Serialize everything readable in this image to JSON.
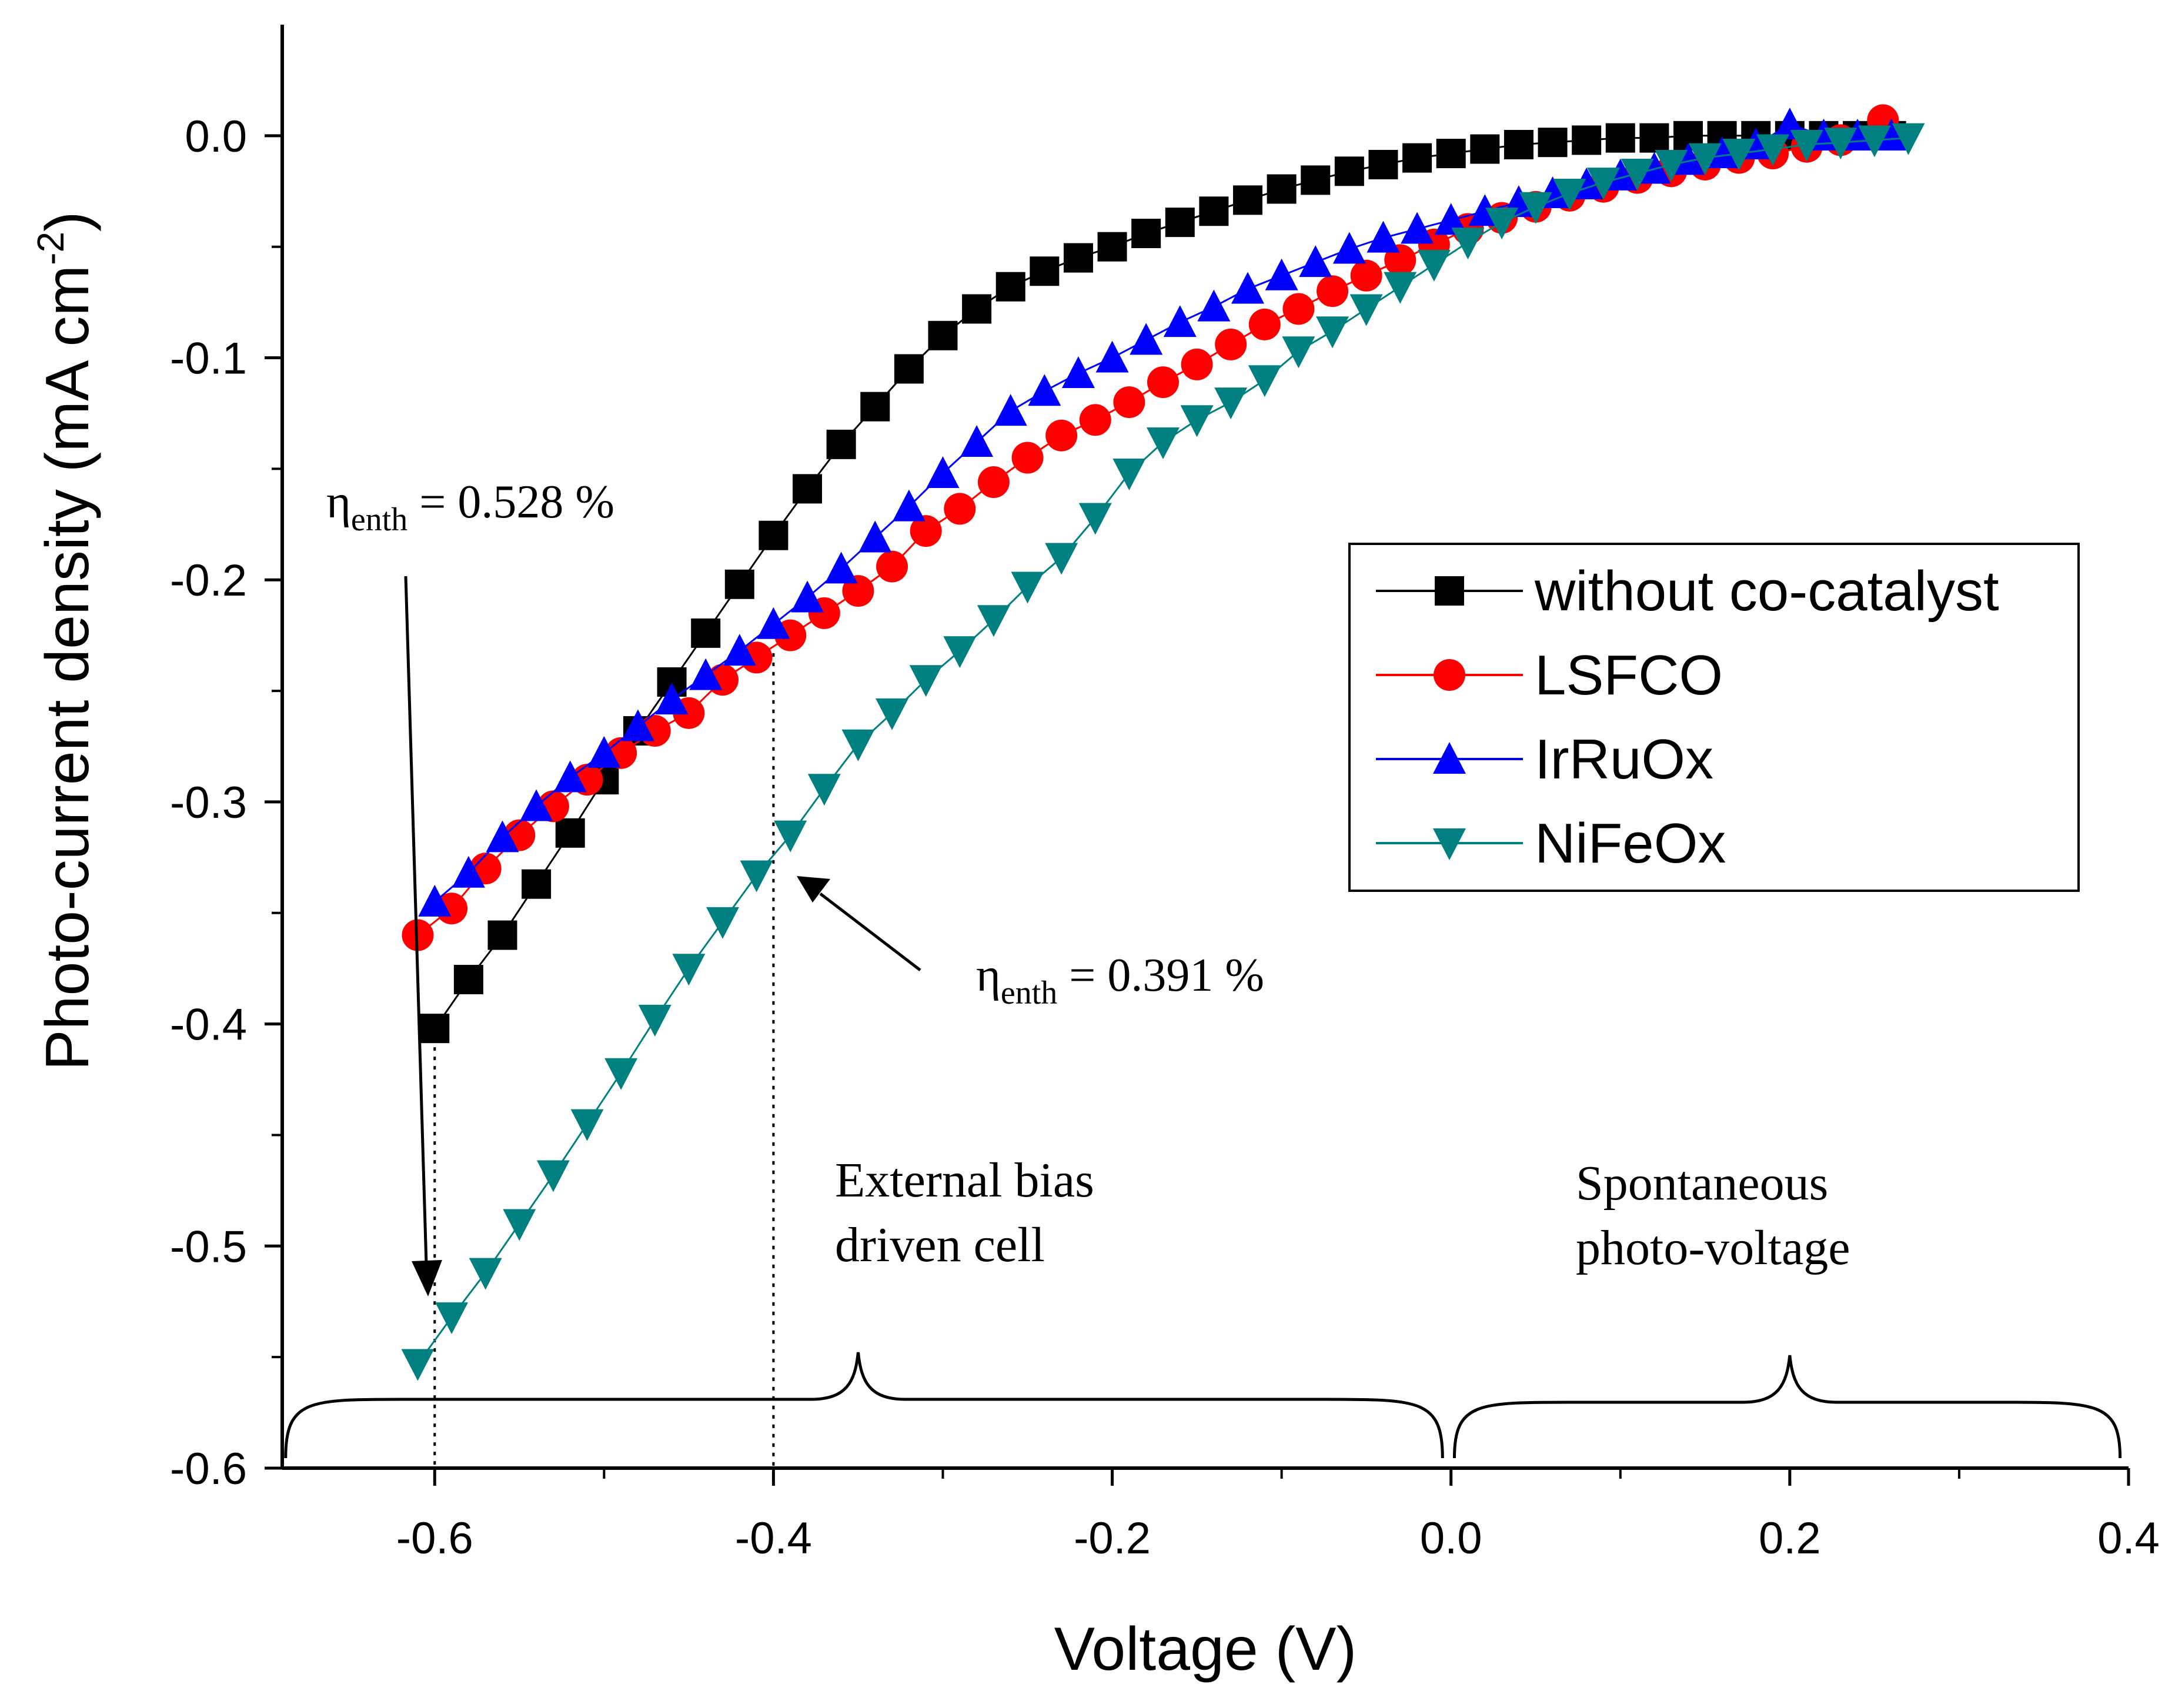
{
  "chart_data": {
    "type": "line",
    "xlabel": "Voltage (V)",
    "ylabel": {
      "main": "Photo-current density (mA cm",
      "sup": "-2",
      "end": ")"
    },
    "xlim": [
      -0.69,
      0.4
    ],
    "ylim": [
      -0.6,
      0.05
    ],
    "x_ticks": [
      -0.6,
      -0.4,
      -0.2,
      0.0,
      0.2,
      0.4
    ],
    "x_tick_labels": [
      "-0.6",
      "-0.4",
      "-0.2",
      "0.0",
      "0.2",
      "0.4"
    ],
    "y_ticks": [
      0.0,
      -0.1,
      -0.2,
      -0.3,
      -0.4,
      -0.5,
      -0.6
    ],
    "y_tick_labels": [
      "0.0",
      "-0.1",
      "-0.2",
      "-0.3",
      "-0.4",
      "-0.5",
      "-0.6"
    ],
    "legend_position": "right",
    "series": [
      {
        "name": "without co-catalyst",
        "color": "#000000",
        "marker": "square",
        "points": [
          [
            -0.6,
            -0.402
          ],
          [
            -0.58,
            -0.38
          ],
          [
            -0.56,
            -0.36
          ],
          [
            -0.54,
            -0.337
          ],
          [
            -0.52,
            -0.314
          ],
          [
            -0.5,
            -0.29
          ],
          [
            -0.48,
            -0.268
          ],
          [
            -0.46,
            -0.246
          ],
          [
            -0.44,
            -0.224
          ],
          [
            -0.42,
            -0.202
          ],
          [
            -0.4,
            -0.18
          ],
          [
            -0.38,
            -0.159
          ],
          [
            -0.36,
            -0.139
          ],
          [
            -0.34,
            -0.122
          ],
          [
            -0.32,
            -0.105
          ],
          [
            -0.3,
            -0.09
          ],
          [
            -0.28,
            -0.078
          ],
          [
            -0.26,
            -0.068
          ],
          [
            -0.24,
            -0.061
          ],
          [
            -0.22,
            -0.055
          ],
          [
            -0.2,
            -0.05
          ],
          [
            -0.18,
            -0.044
          ],
          [
            -0.16,
            -0.039
          ],
          [
            -0.14,
            -0.034
          ],
          [
            -0.12,
            -0.029
          ],
          [
            -0.1,
            -0.024
          ],
          [
            -0.08,
            -0.02
          ],
          [
            -0.06,
            -0.016
          ],
          [
            -0.04,
            -0.013
          ],
          [
            -0.02,
            -0.01
          ],
          [
            0.0,
            -0.008
          ],
          [
            0.02,
            -0.006
          ],
          [
            0.04,
            -0.004
          ],
          [
            0.06,
            -0.003
          ],
          [
            0.08,
            -0.002
          ],
          [
            0.1,
            -0.001
          ],
          [
            0.12,
            -0.001
          ],
          [
            0.14,
            0.0
          ],
          [
            0.16,
            0.0
          ],
          [
            0.18,
            0.0
          ],
          [
            0.2,
            0.0
          ],
          [
            0.22,
            0.0
          ],
          [
            0.24,
            0.0
          ],
          [
            0.26,
            0.0
          ]
        ]
      },
      {
        "name": "LSFCO",
        "color": "#ff0000",
        "marker": "circle",
        "points": [
          [
            -0.61,
            -0.36
          ],
          [
            -0.59,
            -0.348
          ],
          [
            -0.57,
            -0.33
          ],
          [
            -0.55,
            -0.315
          ],
          [
            -0.53,
            -0.302
          ],
          [
            -0.51,
            -0.29
          ],
          [
            -0.49,
            -0.278
          ],
          [
            -0.47,
            -0.268
          ],
          [
            -0.45,
            -0.26
          ],
          [
            -0.43,
            -0.245
          ],
          [
            -0.41,
            -0.235
          ],
          [
            -0.39,
            -0.225
          ],
          [
            -0.37,
            -0.215
          ],
          [
            -0.35,
            -0.205
          ],
          [
            -0.33,
            -0.194
          ],
          [
            -0.31,
            -0.178
          ],
          [
            -0.29,
            -0.168
          ],
          [
            -0.27,
            -0.156
          ],
          [
            -0.25,
            -0.145
          ],
          [
            -0.23,
            -0.135
          ],
          [
            -0.21,
            -0.128
          ],
          [
            -0.19,
            -0.12
          ],
          [
            -0.17,
            -0.111
          ],
          [
            -0.15,
            -0.103
          ],
          [
            -0.13,
            -0.094
          ],
          [
            -0.11,
            -0.085
          ],
          [
            -0.09,
            -0.078
          ],
          [
            -0.07,
            -0.07
          ],
          [
            -0.05,
            -0.063
          ],
          [
            -0.03,
            -0.056
          ],
          [
            -0.01,
            -0.049
          ],
          [
            0.01,
            -0.042
          ],
          [
            0.03,
            -0.037
          ],
          [
            0.05,
            -0.032
          ],
          [
            0.07,
            -0.027
          ],
          [
            0.09,
            -0.023
          ],
          [
            0.11,
            -0.019
          ],
          [
            0.13,
            -0.016
          ],
          [
            0.15,
            -0.013
          ],
          [
            0.17,
            -0.01
          ],
          [
            0.19,
            -0.008
          ],
          [
            0.21,
            -0.005
          ],
          [
            0.23,
            -0.002
          ],
          [
            0.255,
            0.007
          ]
        ]
      },
      {
        "name": "IrRuOx",
        "color": "#0000ff",
        "marker": "triangle-up",
        "points": [
          [
            -0.6,
            -0.345
          ],
          [
            -0.58,
            -0.332
          ],
          [
            -0.56,
            -0.316
          ],
          [
            -0.54,
            -0.302
          ],
          [
            -0.52,
            -0.289
          ],
          [
            -0.5,
            -0.278
          ],
          [
            -0.48,
            -0.266
          ],
          [
            -0.46,
            -0.254
          ],
          [
            -0.44,
            -0.243
          ],
          [
            -0.42,
            -0.232
          ],
          [
            -0.4,
            -0.22
          ],
          [
            -0.38,
            -0.208
          ],
          [
            -0.36,
            -0.195
          ],
          [
            -0.34,
            -0.181
          ],
          [
            -0.32,
            -0.167
          ],
          [
            -0.3,
            -0.152
          ],
          [
            -0.28,
            -0.138
          ],
          [
            -0.26,
            -0.124
          ],
          [
            -0.24,
            -0.115
          ],
          [
            -0.22,
            -0.107
          ],
          [
            -0.2,
            -0.1
          ],
          [
            -0.18,
            -0.092
          ],
          [
            -0.16,
            -0.084
          ],
          [
            -0.14,
            -0.077
          ],
          [
            -0.12,
            -0.069
          ],
          [
            -0.1,
            -0.063
          ],
          [
            -0.08,
            -0.057
          ],
          [
            -0.06,
            -0.051
          ],
          [
            -0.04,
            -0.046
          ],
          [
            -0.02,
            -0.042
          ],
          [
            0.0,
            -0.038
          ],
          [
            0.02,
            -0.034
          ],
          [
            0.04,
            -0.03
          ],
          [
            0.06,
            -0.026
          ],
          [
            0.08,
            -0.022
          ],
          [
            0.1,
            -0.018
          ],
          [
            0.12,
            -0.015
          ],
          [
            0.14,
            -0.011
          ],
          [
            0.16,
            -0.008
          ],
          [
            0.18,
            -0.004
          ],
          [
            0.2,
            0.005
          ],
          [
            0.22,
            0.0
          ],
          [
            0.24,
            0.0
          ],
          [
            0.26,
            0.0
          ]
        ]
      },
      {
        "name": "NiFeOx",
        "color": "#008080",
        "marker": "triangle-down",
        "points": [
          [
            -0.61,
            -0.553
          ],
          [
            -0.59,
            -0.532
          ],
          [
            -0.57,
            -0.512
          ],
          [
            -0.55,
            -0.49
          ],
          [
            -0.53,
            -0.468
          ],
          [
            -0.51,
            -0.445
          ],
          [
            -0.49,
            -0.422
          ],
          [
            -0.47,
            -0.398
          ],
          [
            -0.45,
            -0.375
          ],
          [
            -0.43,
            -0.354
          ],
          [
            -0.41,
            -0.333
          ],
          [
            -0.39,
            -0.315
          ],
          [
            -0.37,
            -0.294
          ],
          [
            -0.35,
            -0.274
          ],
          [
            -0.33,
            -0.26
          ],
          [
            -0.31,
            -0.245
          ],
          [
            -0.29,
            -0.232
          ],
          [
            -0.27,
            -0.218
          ],
          [
            -0.25,
            -0.203
          ],
          [
            -0.23,
            -0.19
          ],
          [
            -0.21,
            -0.172
          ],
          [
            -0.19,
            -0.152
          ],
          [
            -0.17,
            -0.138
          ],
          [
            -0.15,
            -0.128
          ],
          [
            -0.13,
            -0.12
          ],
          [
            -0.11,
            -0.11
          ],
          [
            -0.09,
            -0.097
          ],
          [
            -0.07,
            -0.088
          ],
          [
            -0.05,
            -0.078
          ],
          [
            -0.03,
            -0.068
          ],
          [
            -0.01,
            -0.058
          ],
          [
            0.01,
            -0.048
          ],
          [
            0.03,
            -0.039
          ],
          [
            0.05,
            -0.032
          ],
          [
            0.07,
            -0.026
          ],
          [
            0.09,
            -0.021
          ],
          [
            0.11,
            -0.017
          ],
          [
            0.13,
            -0.013
          ],
          [
            0.15,
            -0.01
          ],
          [
            0.17,
            -0.008
          ],
          [
            0.19,
            -0.006
          ],
          [
            0.21,
            -0.004
          ],
          [
            0.23,
            -0.003
          ],
          [
            0.25,
            -0.002
          ],
          [
            0.27,
            -0.001
          ]
        ]
      }
    ],
    "annotations": {
      "eta_left": {
        "symbol": "η",
        "subscript": "enth",
        "value": " = 0.528 %"
      },
      "eta_right": {
        "symbol": "η",
        "subscript": "enth",
        "value": " = 0.391 %"
      },
      "region_left": {
        "line1": "External bias",
        "line2": "driven cell"
      },
      "region_right": {
        "line1": "Spontaneous",
        "line2": "photo-voltage"
      },
      "guide_lines_x": [
        -0.6,
        -0.4
      ]
    }
  }
}
